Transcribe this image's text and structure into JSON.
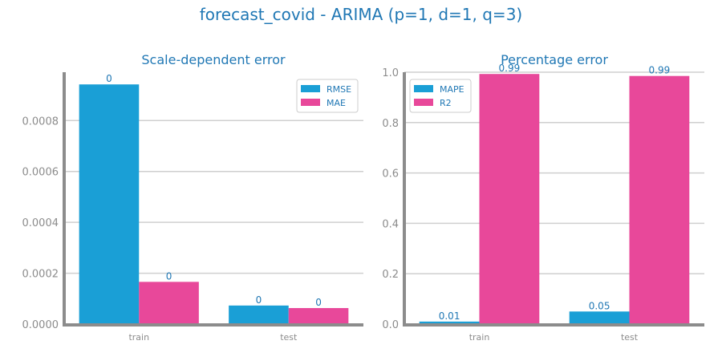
{
  "figure": {
    "title": "forecast_covid - ARIMA (p=1, d=1, q=3)"
  },
  "colors": {
    "series_a": "#1a9fd6",
    "series_b": "#e8489a",
    "title": "#1f77b4",
    "axis": "#8c8c8c",
    "grid": "#cfcfcf"
  },
  "chart_data": [
    {
      "type": "bar",
      "title": "Scale-dependent error",
      "categories": [
        "train",
        "test"
      ],
      "series": [
        {
          "name": "RMSE",
          "values": [
            0.000942,
            7.3e-05
          ]
        },
        {
          "name": "MAE",
          "values": [
            0.000166,
            6.3e-05
          ]
        }
      ],
      "data_labels": [
        [
          "0",
          "0"
        ],
        [
          "0",
          "0"
        ]
      ],
      "ylim": [
        0,
        0.00099
      ],
      "yticks": [
        0,
        0.0002,
        0.0004,
        0.0006,
        0.0008
      ],
      "ytick_labels": [
        "0.0000",
        "0.0002",
        "0.0004",
        "0.0006",
        "0.0008"
      ],
      "xlabel": "",
      "ylabel": "",
      "grid": true,
      "legend": "top-right"
    },
    {
      "type": "bar",
      "title": "Percentage error",
      "categories": [
        "train",
        "test"
      ],
      "series": [
        {
          "name": "MAPE",
          "values": [
            0.01,
            0.05
          ]
        },
        {
          "name": "R2",
          "values": [
            0.993,
            0.985
          ]
        }
      ],
      "data_labels": [
        [
          "0.01",
          "0.05"
        ],
        [
          "0.99",
          "0.99"
        ]
      ],
      "ylim": [
        0,
        1.0
      ],
      "yticks": [
        0,
        0.2,
        0.4,
        0.6,
        0.8,
        1.0
      ],
      "ytick_labels": [
        "0.0",
        "0.2",
        "0.4",
        "0.6",
        "0.8",
        "1.0"
      ],
      "xlabel": "",
      "ylabel": "",
      "grid": true,
      "legend": "top-left"
    }
  ]
}
